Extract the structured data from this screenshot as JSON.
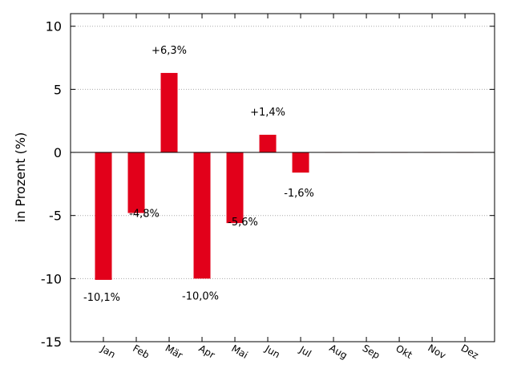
{
  "chart_data": {
    "type": "bar",
    "ylabel": "in Prozent (%)",
    "ylim": [
      -15,
      11
    ],
    "yticks": [
      10,
      5,
      0,
      -5,
      -10,
      -15
    ],
    "grid": true,
    "bar_color": "#e2001a",
    "categories": [
      "Jan",
      "Feb",
      "Mär",
      "Apr",
      "Mai",
      "Jun",
      "Jul",
      "Aug",
      "Sep",
      "Okt",
      "Nov",
      "Dez"
    ],
    "values": [
      -10.1,
      -4.8,
      6.3,
      -10.0,
      -5.6,
      1.4,
      -1.6,
      0,
      0,
      0,
      0,
      0
    ],
    "labels": [
      "-10,1%",
      "-4,8%",
      "+6,3%",
      "-10,0%",
      "-5,6%",
      "+1,4%",
      "-1,6%",
      "",
      "",
      "",
      "",
      ""
    ]
  }
}
